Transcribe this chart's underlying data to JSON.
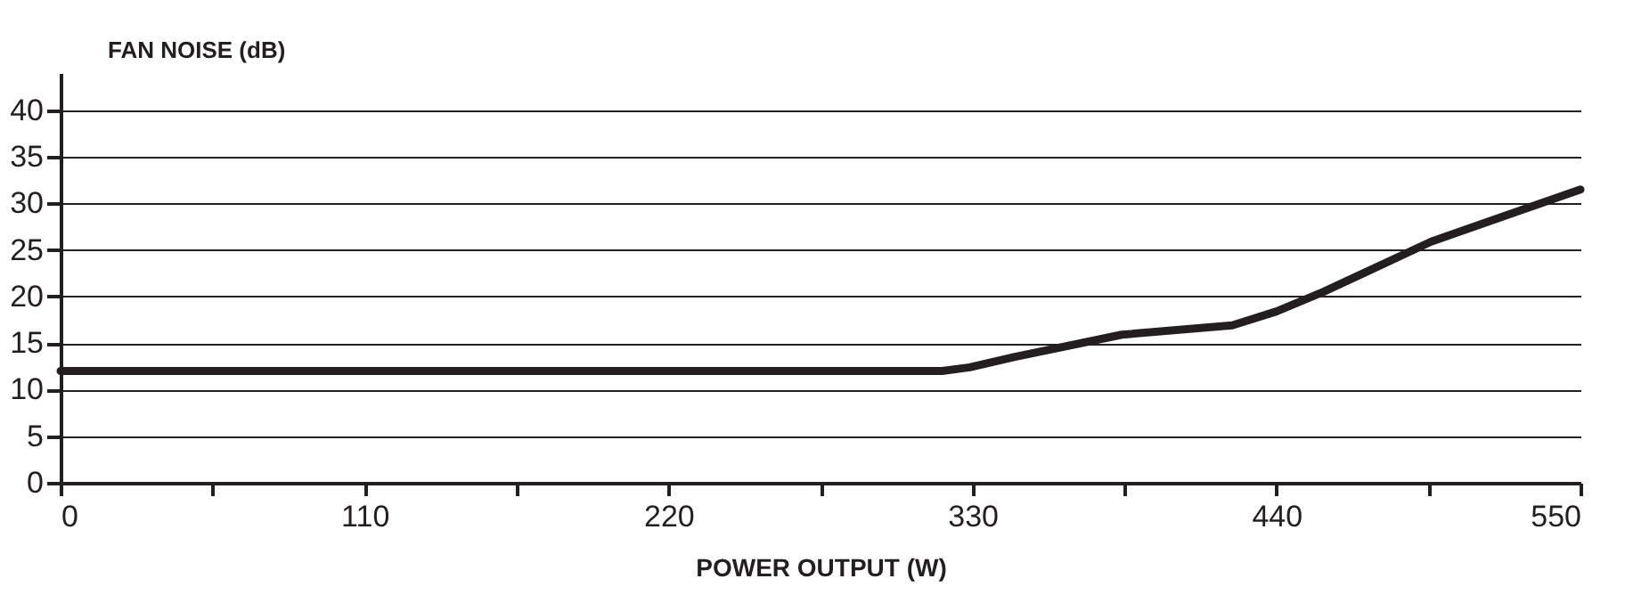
{
  "chart_data": {
    "type": "line",
    "xlabel": "POWER OUTPUT (W)",
    "ylabel": "FAN NOISE (dB)",
    "x": [
      0,
      100,
      200,
      300,
      319,
      329,
      345,
      384,
      424,
      440,
      457,
      496,
      522,
      550
    ],
    "series": [
      {
        "color": "#231f20",
        "values": [
          12,
          12,
          12,
          12,
          12,
          12.4,
          13.5,
          15.9,
          16.9,
          18.4,
          20.5,
          25.9,
          28.6,
          31.5
        ]
      }
    ],
    "xlim": [
      0,
      550
    ],
    "ylim": [
      0,
      44
    ],
    "xticks": [
      0,
      {
        "value": 55,
        "label": null
      },
      110,
      {
        "value": 165,
        "label": null
      },
      220,
      {
        "value": 275,
        "label": null
      },
      330,
      {
        "value": 385,
        "label": null
      },
      440,
      {
        "value": 495,
        "label": null
      },
      550
    ],
    "yticks": [
      0,
      5,
      10,
      15,
      20,
      25,
      30,
      35,
      40
    ],
    "grid": "y",
    "legend": false,
    "marker": "none",
    "line_style": "solid"
  }
}
